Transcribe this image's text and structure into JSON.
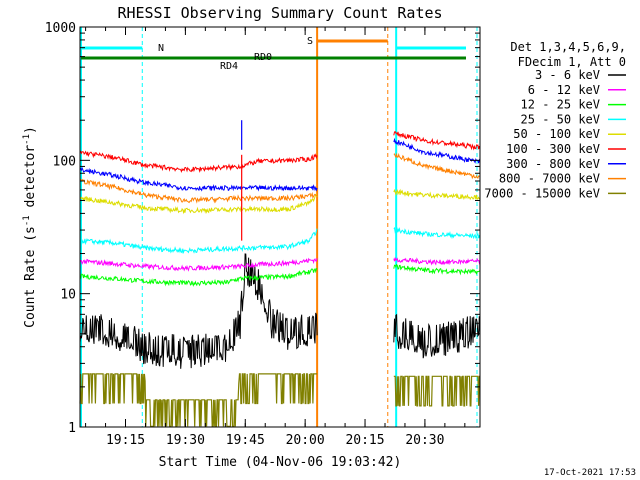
{
  "chart_data": {
    "type": "line",
    "title": "RHESSI Observing Summary Count Rates",
    "xlabel": "Start Time (04-Nov-06 19:03:42)",
    "ylabel": "Count Rate (s",
    "ylabel_sup": "-1",
    "ylabel_tail": " detector",
    "ylabel_tail_sup": "-1",
    "ylabel_close": ")",
    "y_scale": "log",
    "ylim": [
      1,
      1000
    ],
    "xlim": [
      19.06,
      20.73
    ],
    "x_tick_labels": [
      "19:15",
      "19:30",
      "19:45",
      "20:00",
      "20:15",
      "20:30"
    ],
    "y_tick_labels": [
      "1",
      "10",
      "100",
      "1000"
    ],
    "legend_placement": "right",
    "legend_header": [
      "Det 1,3,4,5,6,9,",
      "FDecim 1, Att 0"
    ],
    "footer": "17-Oct-2021 17:53",
    "flag_labels": {
      "n": "N",
      "s": "S",
      "rd0": "RD0",
      "rd4": "RD4"
    },
    "night_intervals": [
      [
        19.06,
        19.32
      ],
      [
        20.38,
        20.73
      ]
    ],
    "saa_interval": [
      20.05,
      20.37
    ],
    "data_gap": [
      20.06,
      20.37
    ],
    "series": [
      {
        "name": "3 - 6 keV",
        "color": "#000000",
        "seg1": [
          [
            19.06,
            5.5
          ],
          [
            19.2,
            5.2
          ],
          [
            19.33,
            3.9
          ],
          [
            19.5,
            3.6
          ],
          [
            19.67,
            3.9
          ],
          [
            19.73,
            6
          ],
          [
            19.75,
            16
          ],
          [
            19.8,
            12
          ],
          [
            19.86,
            6
          ],
          [
            19.93,
            5
          ],
          [
            20.05,
            5.5
          ]
        ],
        "seg2": [
          [
            20.37,
            5.3
          ],
          [
            20.5,
            4.3
          ],
          [
            20.6,
            4.6
          ],
          [
            20.73,
            5.3
          ]
        ]
      },
      {
        "name": "6 - 12 keV",
        "color": "#ff00ff",
        "seg1": [
          [
            19.06,
            17.5
          ],
          [
            19.2,
            16.8
          ],
          [
            19.33,
            16
          ],
          [
            19.5,
            15.5
          ],
          [
            19.73,
            16
          ],
          [
            19.8,
            16.5
          ],
          [
            19.93,
            17
          ],
          [
            20.05,
            18
          ]
        ],
        "seg2": [
          [
            20.37,
            18
          ],
          [
            20.55,
            17.2
          ],
          [
            20.73,
            17.5
          ]
        ]
      },
      {
        "name": "12 - 25 keV",
        "color": "#00ff00",
        "seg1": [
          [
            19.06,
            13.5
          ],
          [
            19.2,
            13
          ],
          [
            19.33,
            12.4
          ],
          [
            19.5,
            12
          ],
          [
            19.67,
            12.1
          ],
          [
            19.73,
            13
          ],
          [
            19.93,
            13.5
          ],
          [
            20.05,
            15
          ]
        ],
        "seg2": [
          [
            20.37,
            16
          ],
          [
            20.5,
            15
          ],
          [
            20.73,
            14.5
          ]
        ]
      },
      {
        "name": "25 - 50 keV",
        "color": "#00ffff",
        "seg1": [
          [
            19.06,
            25
          ],
          [
            19.2,
            24
          ],
          [
            19.33,
            22
          ],
          [
            19.5,
            21
          ],
          [
            19.73,
            22
          ],
          [
            19.93,
            22.5
          ],
          [
            20.02,
            25
          ],
          [
            20.05,
            30
          ]
        ],
        "seg2": [
          [
            20.37,
            30
          ],
          [
            20.5,
            28
          ],
          [
            20.73,
            27
          ]
        ]
      },
      {
        "name": "50 - 100 keV",
        "color": "#dddd00",
        "seg1": [
          [
            19.06,
            52
          ],
          [
            19.2,
            48
          ],
          [
            19.33,
            44
          ],
          [
            19.5,
            42
          ],
          [
            19.73,
            43
          ],
          [
            19.93,
            43
          ],
          [
            20.02,
            48
          ],
          [
            20.05,
            55
          ]
        ],
        "seg2": [
          [
            20.37,
            58
          ],
          [
            20.5,
            55
          ],
          [
            20.73,
            53
          ]
        ]
      },
      {
        "name": "100 - 300 keV",
        "color": "#ff0000",
        "seg1": [
          [
            19.06,
            115
          ],
          [
            19.2,
            105
          ],
          [
            19.33,
            92
          ],
          [
            19.5,
            85
          ],
          [
            19.73,
            90
          ],
          [
            19.8,
            98
          ],
          [
            19.93,
            100
          ],
          [
            20.02,
            102
          ],
          [
            20.05,
            110
          ]
        ],
        "seg2": [
          [
            20.37,
            160
          ],
          [
            20.5,
            140
          ],
          [
            20.73,
            125
          ]
        ]
      },
      {
        "name": "300 - 800 keV",
        "color": "#0000ff",
        "seg1": [
          [
            19.06,
            85
          ],
          [
            19.2,
            77
          ],
          [
            19.33,
            68
          ],
          [
            19.5,
            62
          ],
          [
            19.73,
            62
          ],
          [
            19.93,
            62
          ],
          [
            20.05,
            62
          ]
        ],
        "seg2": [
          [
            20.37,
            140
          ],
          [
            20.5,
            115
          ],
          [
            20.73,
            97
          ]
        ]
      },
      {
        "name": "800 - 7000 keV",
        "color": "#ff8000",
        "seg1": [
          [
            19.06,
            70
          ],
          [
            19.2,
            63
          ],
          [
            19.33,
            55
          ],
          [
            19.5,
            50
          ],
          [
            19.73,
            52
          ],
          [
            19.93,
            52
          ],
          [
            20.05,
            55
          ]
        ],
        "seg2": [
          [
            20.37,
            110
          ],
          [
            20.5,
            90
          ],
          [
            20.73,
            75
          ]
        ]
      },
      {
        "name": "7000 - 15000 keV",
        "color": "#808000",
        "seg1": [
          [
            19.06,
            2.5
          ],
          [
            19.33,
            2.5
          ],
          [
            19.335,
            1.6
          ],
          [
            19.72,
            1.6
          ],
          [
            19.725,
            2.5
          ],
          [
            20.05,
            2.5
          ]
        ],
        "seg2": [
          [
            20.37,
            2.4
          ],
          [
            20.73,
            2.4
          ]
        ]
      }
    ]
  }
}
